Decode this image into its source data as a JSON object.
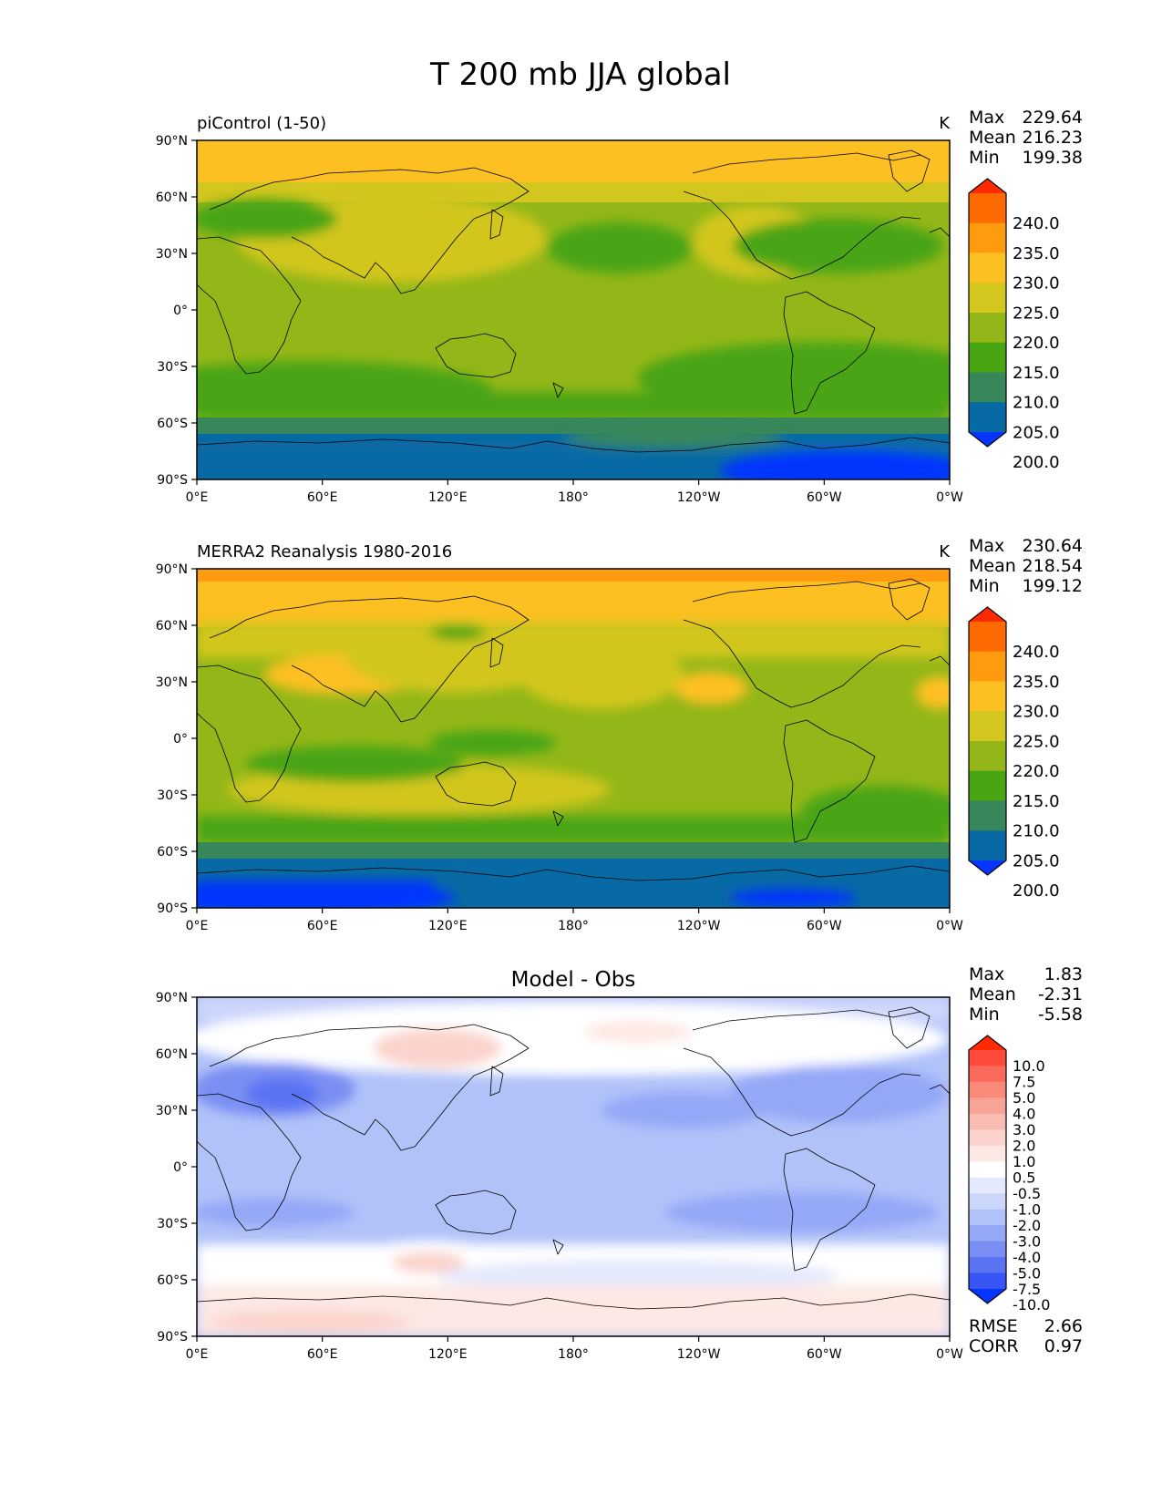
{
  "title": "T 200 mb JJA global",
  "lat_ticks": [
    "90°N",
    "60°N",
    "30°N",
    "0°",
    "30°S",
    "60°S",
    "90°S"
  ],
  "lon_ticks": [
    "0°E",
    "60°E",
    "120°E",
    "180°",
    "120°W",
    "60°W",
    "0°W"
  ],
  "stat_labels": {
    "max": "Max",
    "mean": "Mean",
    "min": "Min",
    "rmse": "RMSE",
    "corr": "CORR"
  },
  "panels": [
    {
      "name": "model",
      "left_title": "piControl (1-50)",
      "center_title": "",
      "units": "K",
      "stats": {
        "max": "229.64",
        "mean": "216.23",
        "min": "199.38"
      },
      "colorbar": {
        "labels": [
          "240.0",
          "235.0",
          "230.0",
          "225.0",
          "220.0",
          "215.0",
          "210.0",
          "205.0",
          "200.0"
        ],
        "colors": [
          "#ff2a00",
          "#ff6a00",
          "#ff9b0f",
          "#fdc022",
          "#d2c61f",
          "#93b718",
          "#4aa512",
          "#37875a",
          "#086aa4",
          "#0535ff"
        ]
      },
      "field_description": "200 mb temperature, JJA climatology; bands from polar cold (200 K) to warm Arctic (>225 K)"
    },
    {
      "name": "obs",
      "left_title": "MERRA2 Reanalysis 1980-2016",
      "center_title": "",
      "units": "K",
      "stats": {
        "max": "230.64",
        "mean": "218.54",
        "min": "199.12"
      },
      "colorbar": {
        "labels": [
          "240.0",
          "235.0",
          "230.0",
          "225.0",
          "220.0",
          "215.0",
          "210.0",
          "205.0",
          "200.0"
        ],
        "colors": [
          "#ff2a00",
          "#ff6a00",
          "#ff9b0f",
          "#fdc022",
          "#d2c61f",
          "#93b718",
          "#4aa512",
          "#37875a",
          "#086aa4",
          "#0535ff"
        ]
      }
    },
    {
      "name": "diff",
      "left_title": "",
      "center_title": "Model - Obs",
      "units": "",
      "stats": {
        "max": "1.83",
        "mean": "-2.31",
        "min": "-5.58"
      },
      "rmse": "2.66",
      "corr": "0.97",
      "colorbar": {
        "labels": [
          "10.0",
          "7.5",
          "5.0",
          "4.0",
          "3.0",
          "2.0",
          "1.0",
          "0.5",
          "-0.5",
          "-1.0",
          "-2.0",
          "-3.0",
          "-4.0",
          "-5.0",
          "-7.5",
          "-10.0"
        ],
        "colors": [
          "#ff2a00",
          "#ff4a3c",
          "#fb6a5a",
          "#f98978",
          "#f7a395",
          "#f9bcb2",
          "#fbd3cc",
          "#fde8e4",
          "#ffffff",
          "#e4e9fd",
          "#ccd6fb",
          "#b1c2f9",
          "#95a8f7",
          "#7a8ff3",
          "#5a73f3",
          "#3955f5",
          "#0535ff"
        ]
      }
    }
  ]
}
